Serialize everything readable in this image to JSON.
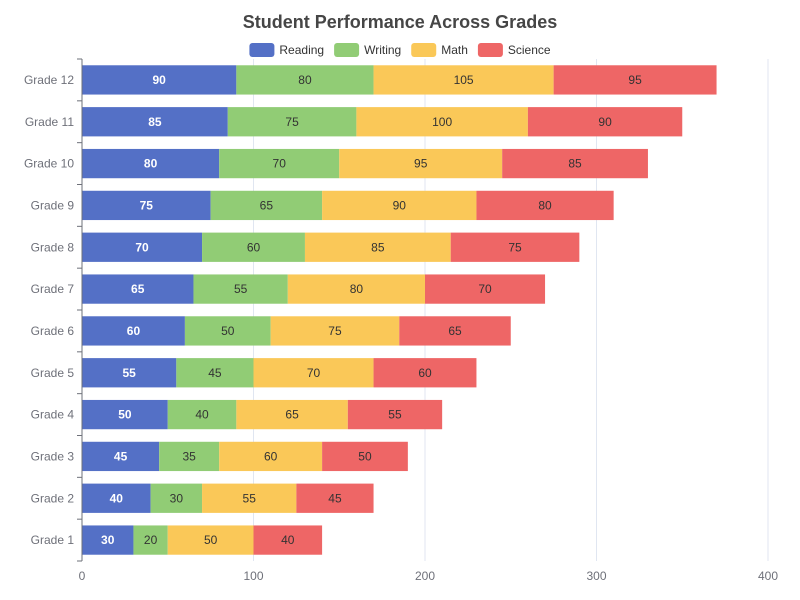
{
  "chart_data": {
    "type": "bar",
    "orientation": "horizontal",
    "stacked": true,
    "title": "Student Performance Across Grades",
    "categories": [
      "Grade 1",
      "Grade 2",
      "Grade 3",
      "Grade 4",
      "Grade 5",
      "Grade 6",
      "Grade 7",
      "Grade 8",
      "Grade 9",
      "Grade 10",
      "Grade 11",
      "Grade 12"
    ],
    "series": [
      {
        "name": "Reading",
        "color": "#5470c6",
        "label_color": "#ffffff",
        "values": [
          30,
          40,
          45,
          50,
          55,
          60,
          65,
          70,
          75,
          80,
          85,
          90
        ]
      },
      {
        "name": "Writing",
        "color": "#91cc75",
        "label_color": "#333333",
        "values": [
          20,
          30,
          35,
          40,
          45,
          50,
          55,
          60,
          65,
          70,
          75,
          80
        ]
      },
      {
        "name": "Math",
        "color": "#fac858",
        "label_color": "#333333",
        "values": [
          50,
          55,
          60,
          65,
          70,
          75,
          80,
          85,
          90,
          95,
          100,
          105
        ]
      },
      {
        "name": "Science",
        "color": "#ee6666",
        "label_color": "#333333",
        "values": [
          40,
          45,
          50,
          55,
          60,
          65,
          70,
          75,
          80,
          85,
          90,
          95
        ]
      }
    ],
    "xlim": [
      0,
      400
    ],
    "xticks": [
      0,
      100,
      200,
      300,
      400
    ],
    "xlabel": "",
    "ylabel": "",
    "grid": true,
    "legend_position": "top-center"
  }
}
